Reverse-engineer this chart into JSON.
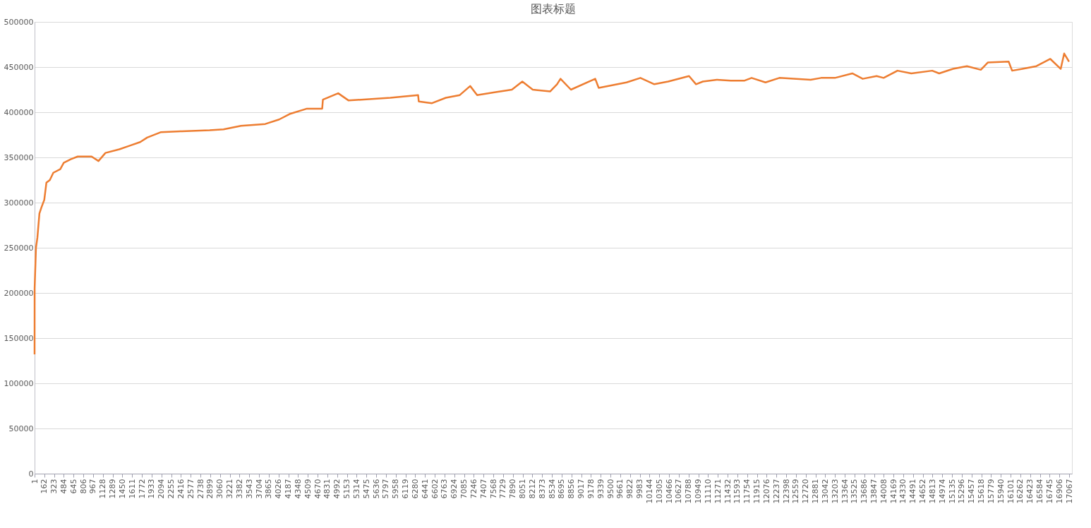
{
  "chart_data": {
    "type": "line",
    "title": "图表标题",
    "grid": "y",
    "ylim": [
      0,
      500000
    ],
    "yticks": [
      0,
      50000,
      100000,
      150000,
      200000,
      250000,
      300000,
      350000,
      400000,
      450000,
      500000
    ],
    "xlim": [
      1,
      17112
    ],
    "xticks": [
      1,
      162,
      323,
      484,
      645,
      806,
      967,
      1128,
      1289,
      1450,
      1611,
      1772,
      1933,
      2094,
      2255,
      2416,
      2577,
      2738,
      2899,
      3060,
      3221,
      3382,
      3543,
      3704,
      3865,
      4026,
      4187,
      4348,
      4509,
      4670,
      4831,
      4992,
      5153,
      5314,
      5475,
      5636,
      5797,
      5958,
      6119,
      6280,
      6441,
      6602,
      6763,
      6924,
      7085,
      7246,
      7407,
      7568,
      7729,
      7890,
      8051,
      8212,
      8373,
      8534,
      8695,
      8856,
      9017,
      9178,
      9339,
      9500,
      9661,
      9822,
      9983,
      10144,
      10305,
      10466,
      10627,
      10788,
      10949,
      11110,
      11271,
      11432,
      11593,
      11754,
      11915,
      12076,
      12237,
      12398,
      12559,
      12720,
      12881,
      13042,
      13203,
      13364,
      13525,
      13686,
      13847,
      14008,
      14169,
      14330,
      14491,
      14652,
      14813,
      14974,
      15135,
      15296,
      15457,
      15618,
      15779,
      15940,
      16101,
      16262,
      16423,
      16584,
      16745,
      16906,
      17067
    ],
    "series": [
      {
        "color": "#ed7d31",
        "x": [
          1,
          2,
          24,
          47,
          81,
          116,
          161,
          196,
          253,
          310,
          425,
          482,
          597,
          712,
          941,
          1055,
          1170,
          1399,
          1571,
          1743,
          1858,
          2087,
          2431,
          2889,
          3118,
          3405,
          3806,
          4035,
          4207,
          4494,
          4745,
          4757,
          5009,
          5181,
          5869,
          6327,
          6338,
          6556,
          6785,
          7015,
          7186,
          7301,
          7588,
          7874,
          8046,
          8218,
          8504,
          8619,
          8676,
          8848,
          9249,
          9306,
          9765,
          9994,
          10223,
          10452,
          10796,
          10911,
          11025,
          11254,
          11484,
          11713,
          11828,
          12057,
          12286,
          12802,
          12974,
          13203,
          13489,
          13661,
          13890,
          14005,
          14234,
          14463,
          14807,
          14922,
          15151,
          15380,
          15609,
          15724,
          16068,
          16125,
          16297,
          16526,
          16755,
          16927,
          16984,
          17064
        ],
        "values": [
          132000,
          205000,
          250000,
          261000,
          288000,
          295000,
          303000,
          322000,
          325000,
          333000,
          337000,
          344000,
          348000,
          351000,
          351000,
          346000,
          355000,
          359000,
          363000,
          367000,
          372000,
          378000,
          379000,
          380000,
          381000,
          385000,
          387000,
          392000,
          398000,
          404000,
          404000,
          414000,
          421000,
          413000,
          416000,
          419000,
          412000,
          410000,
          416000,
          419000,
          429000,
          419000,
          422000,
          425000,
          434000,
          425000,
          423000,
          431000,
          437000,
          425000,
          437000,
          427000,
          433000,
          438000,
          431000,
          434000,
          440000,
          431000,
          434000,
          436000,
          435000,
          435000,
          438000,
          433000,
          438000,
          436000,
          438000,
          438000,
          443000,
          437000,
          440000,
          438000,
          446000,
          443000,
          446000,
          443000,
          448000,
          451000,
          447000,
          455000,
          456000,
          446000,
          448000,
          451000,
          459000,
          448000,
          465000,
          456000
        ]
      }
    ]
  }
}
